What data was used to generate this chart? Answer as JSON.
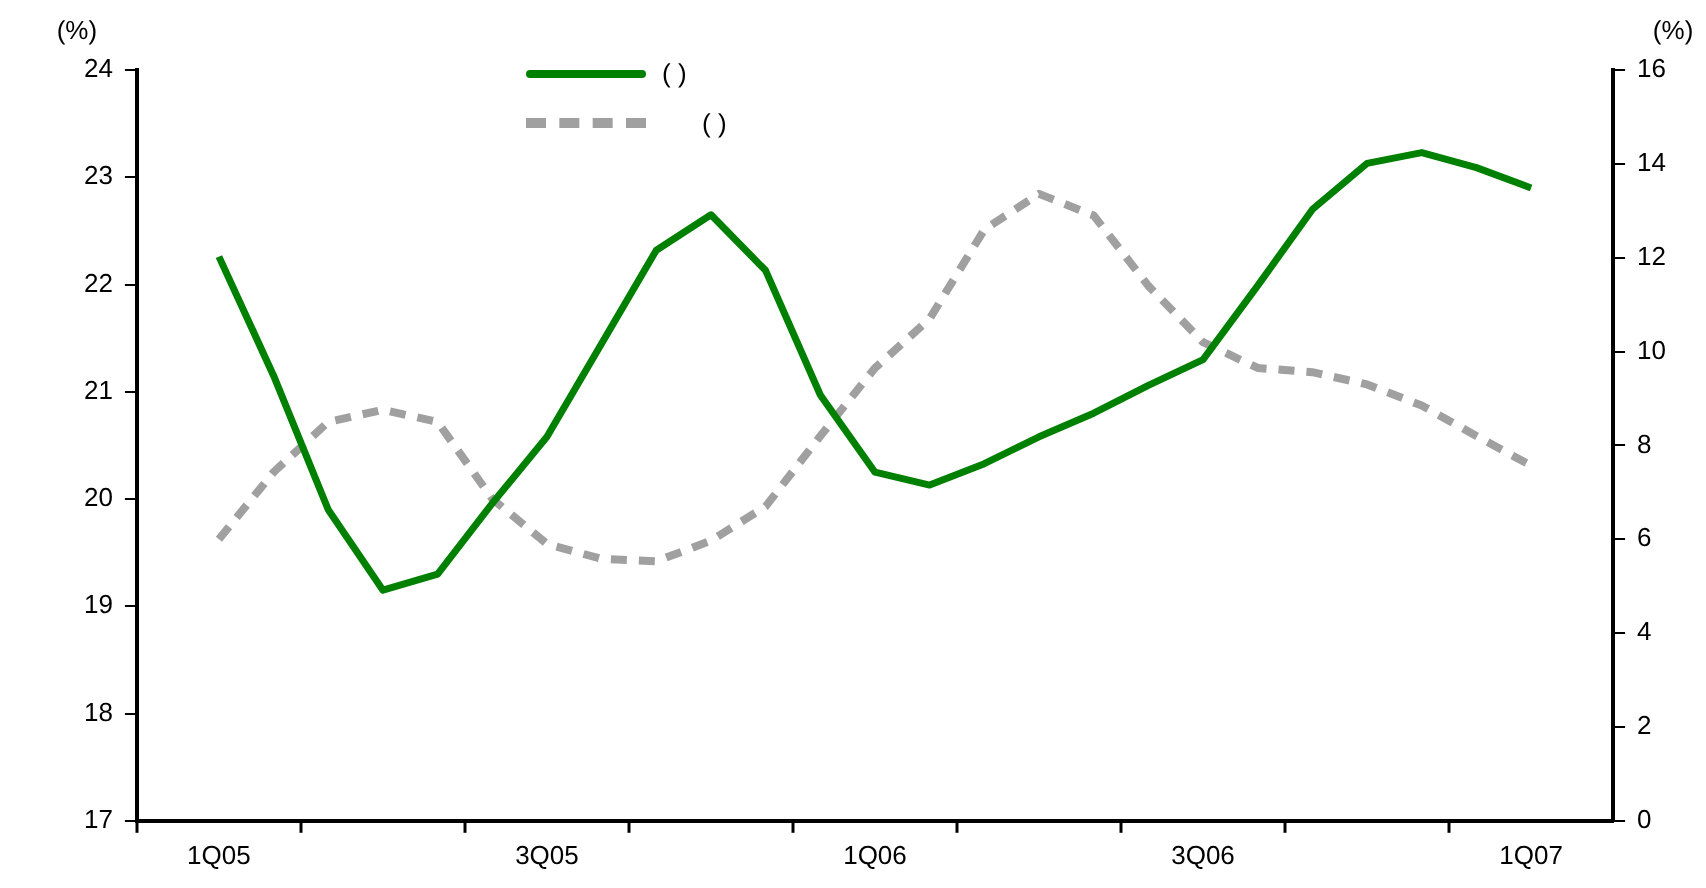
{
  "chart_data": {
    "type": "line",
    "ylabel": "(%)",
    "y2label": "(%)",
    "categories": [
      null,
      "1Q05",
      null,
      null,
      null,
      null,
      null,
      "3Q05",
      null,
      null,
      null,
      null,
      null,
      "1Q06",
      null,
      null,
      null,
      null,
      null,
      "3Q06",
      null,
      null,
      null,
      null,
      null,
      "1Q07",
      null
    ],
    "series": [
      {
        "name": "(      )",
        "color": "#008000",
        "line_style": "solid",
        "values": [
          null,
          22.26,
          21.15,
          19.9,
          19.15,
          19.3,
          19.96,
          20.58,
          21.45,
          22.32,
          22.65,
          22.13,
          20.97,
          20.25,
          20.13,
          20.33,
          20.58,
          20.8,
          21.06,
          21.3,
          21.99,
          22.7,
          23.13,
          23.23,
          23.09,
          22.9,
          null
        ]
      },
      {
        "name": "(      )",
        "color": "#a0a0a0",
        "line_style": "dashed",
        "axis": "y2",
        "values": [
          null,
          6.0,
          7.43,
          8.5,
          8.76,
          8.5,
          6.86,
          5.9,
          5.58,
          5.53,
          5.97,
          6.7,
          8.2,
          9.65,
          10.7,
          12.6,
          13.36,
          12.9,
          11.4,
          10.2,
          9.65,
          9.56,
          9.3,
          8.85,
          8.2,
          7.57,
          null
        ]
      }
    ],
    "ylim": [
      17,
      24
    ],
    "yticks": [
      17,
      18,
      19,
      20,
      21,
      22,
      23,
      24
    ],
    "y2lim": [
      0,
      16
    ],
    "y2ticks": [
      0,
      2,
      4,
      6,
      8,
      10,
      12,
      14,
      16
    ],
    "grid": false,
    "legend": "top",
    "marker": "none"
  }
}
